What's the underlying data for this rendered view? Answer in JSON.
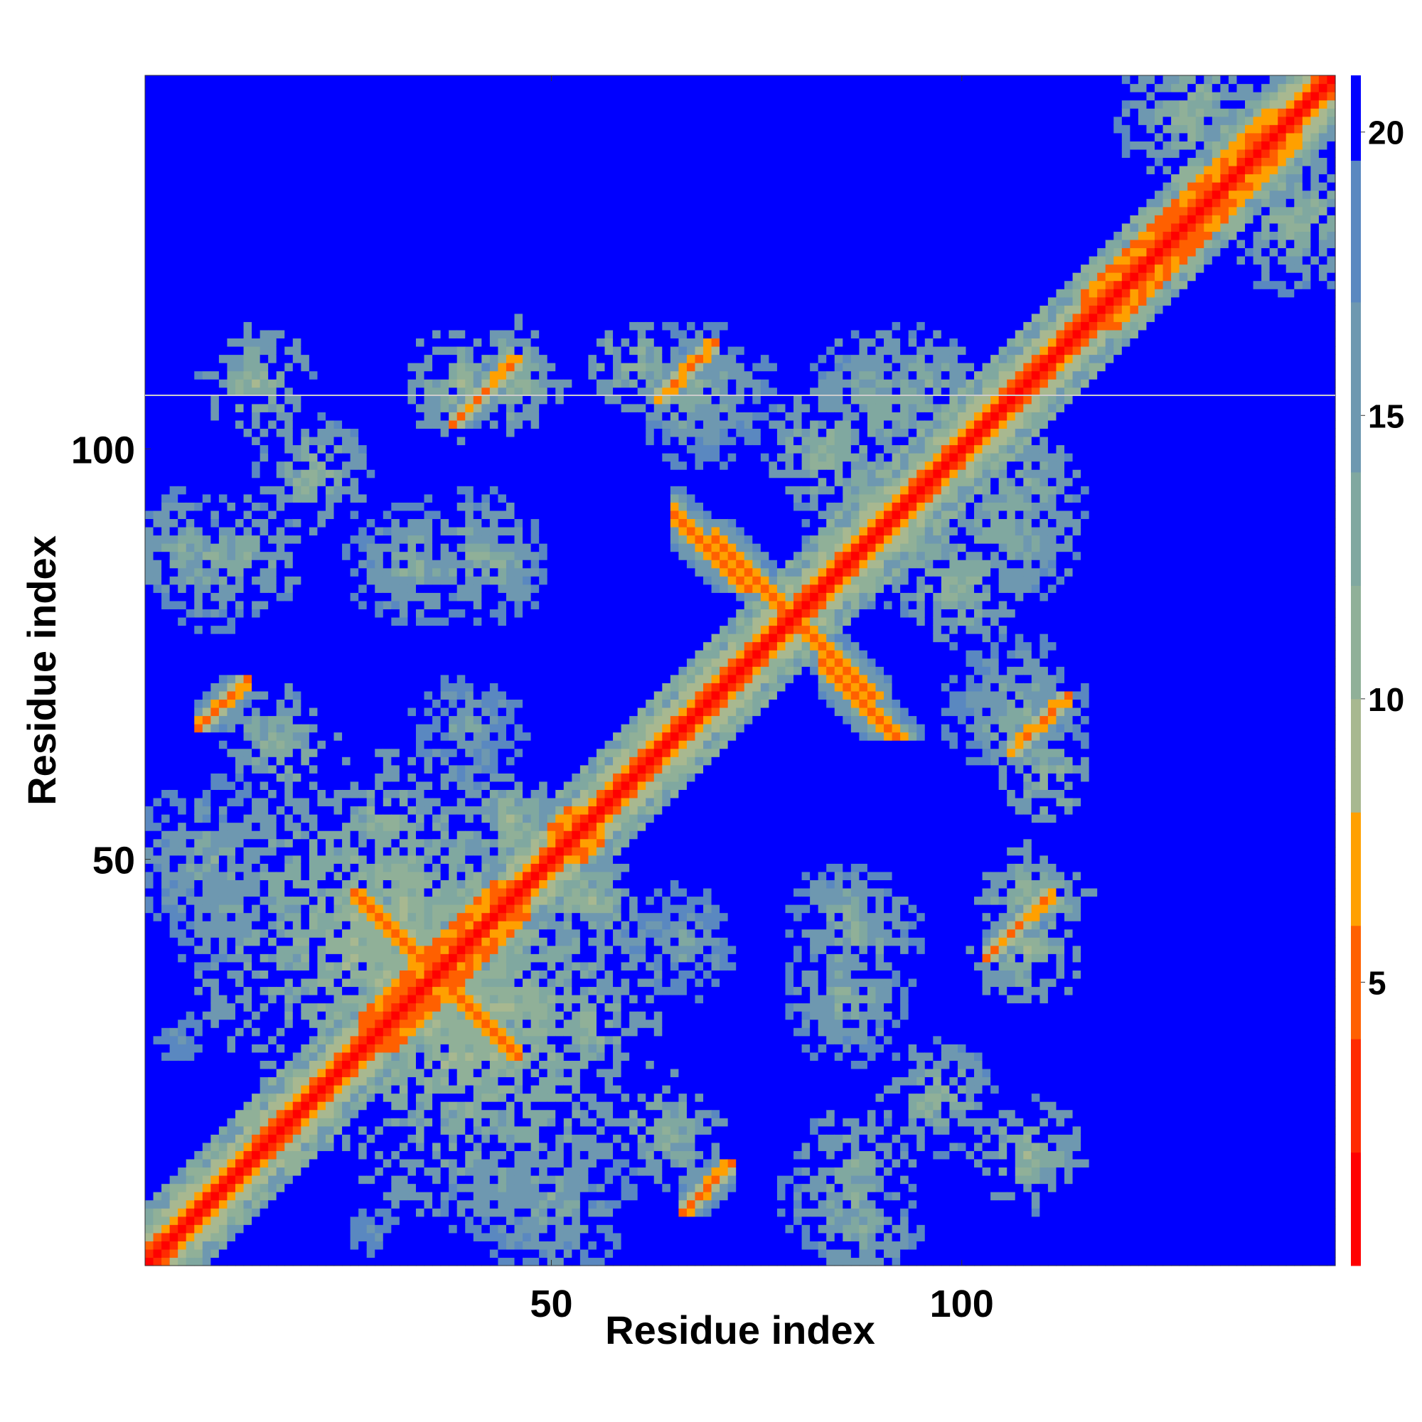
{
  "chart_data": {
    "type": "heatmap",
    "title": "",
    "xlabel": "Residue index",
    "ylabel": "Residue index",
    "n_residues": 145,
    "xlim": [
      1,
      145
    ],
    "ylim": [
      1,
      145
    ],
    "x_ticks": [
      50,
      100
    ],
    "y_ticks": [
      50,
      100
    ],
    "colorbar": {
      "min": 0,
      "max": 21,
      "ticks": [
        5,
        10,
        15,
        20
      ],
      "levels": [
        {
          "upper": 2,
          "color": "#ff0000"
        },
        {
          "upper": 4,
          "color": "#ff2a00"
        },
        {
          "upper": 6,
          "color": "#ff6000"
        },
        {
          "upper": 8,
          "color": "#ffa000"
        },
        {
          "upper": 10,
          "color": "#a8b890"
        },
        {
          "upper": 12,
          "color": "#90b098"
        },
        {
          "upper": 14,
          "color": "#80a8a0"
        },
        {
          "upper": 17,
          "color": "#6e98b0"
        },
        {
          "upper": 19.5,
          "color": "#5a88c0"
        },
        {
          "upper": 21,
          "color": "#0000ff"
        }
      ]
    },
    "contact_features": [
      {
        "kind": "diagonal",
        "note": "residue i with itself, distance ~0"
      },
      {
        "kind": "antiparallel",
        "i_range": [
          26,
          36
        ],
        "j_range": [
          36,
          46
        ]
      },
      {
        "kind": "antiparallel",
        "i_range": [
          65,
          74
        ],
        "j_range": [
          83,
          95
        ]
      },
      {
        "kind": "antiparallel",
        "i_range": [
          79,
          91
        ],
        "j_range": [
          69,
          77
        ]
      },
      {
        "kind": "parallel",
        "i_range": [
          38,
          46
        ],
        "j_range": [
          103,
          111
        ]
      },
      {
        "kind": "parallel",
        "i_range": [
          105,
          113
        ],
        "j_range": [
          38,
          46
        ]
      },
      {
        "kind": "parallel",
        "i_range": [
          63,
          70
        ],
        "j_range": [
          106,
          113
        ]
      },
      {
        "kind": "parallel",
        "i_range": [
          106,
          113
        ],
        "j_range": [
          63,
          70
        ]
      }
    ]
  }
}
